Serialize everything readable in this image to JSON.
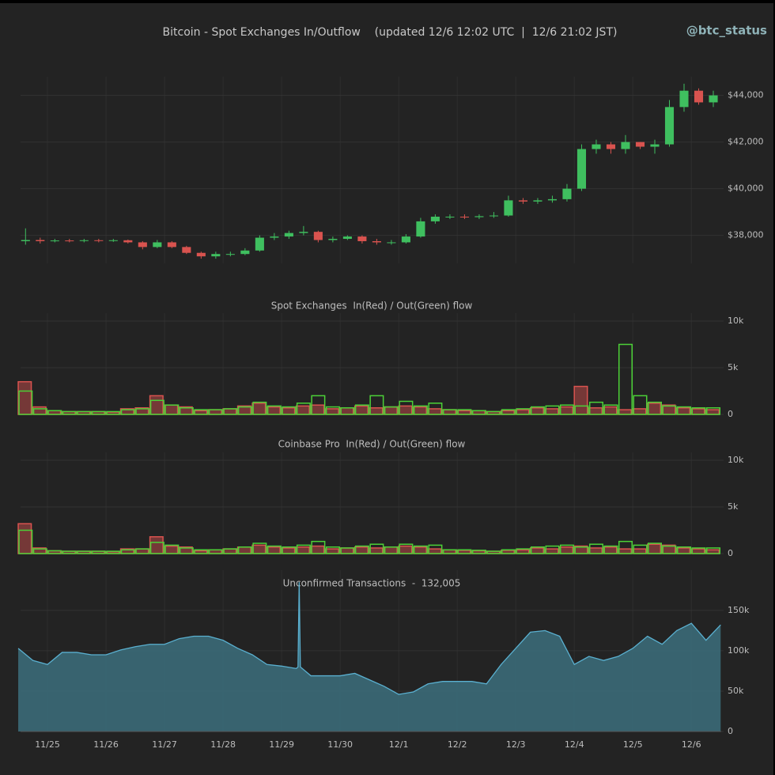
{
  "header": {
    "title": "Bitcoin - Spot Exchanges In/Outflow    (updated 12/6 12:02 UTC  |  12/6 21:02 JST)",
    "watermark": "@btc_status"
  },
  "chart_data": [
    {
      "type": "candlestick",
      "up_color": "#3fbf5f",
      "down_color": "#d9534f",
      "x": [
        -0.5,
        -0.25,
        0,
        0.25,
        0.5,
        0.75,
        1,
        1.25,
        1.5,
        1.75,
        2,
        2.25,
        2.5,
        2.75,
        3,
        3.25,
        3.5,
        3.75,
        4,
        4.25,
        4.5,
        4.75,
        5,
        5.25,
        5.5,
        5.75,
        6,
        6.25,
        6.5,
        6.75,
        7,
        7.25,
        7.5,
        7.75,
        8,
        8.25,
        8.5,
        8.75,
        9,
        9.25,
        9.5,
        9.75,
        10,
        10.25,
        10.5,
        10.75,
        11,
        11.25
      ],
      "open": [
        37750,
        37800,
        37750,
        37780,
        37760,
        37790,
        37770,
        37790,
        37700,
        37500,
        37700,
        37500,
        37250,
        37100,
        37200,
        37200,
        37350,
        37900,
        37950,
        38100,
        38150,
        37800,
        37850,
        37950,
        37750,
        37700,
        37700,
        37950,
        38600,
        38800,
        38800,
        38780,
        38820,
        38850,
        39500,
        39450,
        39500,
        39550,
        40000,
        41700,
        41900,
        41700,
        42000,
        41800,
        41900,
        43500,
        44200,
        43700
      ],
      "high": [
        38300,
        37900,
        37850,
        37850,
        37850,
        37850,
        37850,
        37820,
        37750,
        37800,
        37750,
        37550,
        37300,
        37300,
        37300,
        37450,
        38000,
        38100,
        38200,
        38400,
        38200,
        37950,
        38000,
        38000,
        37850,
        37800,
        38050,
        38750,
        38900,
        38900,
        38900,
        38900,
        39000,
        39700,
        39600,
        39600,
        39700,
        40200,
        41900,
        42100,
        42000,
        42300,
        42000,
        42100,
        43800,
        44500,
        44300,
        44200
      ],
      "low": [
        37600,
        37650,
        37700,
        37700,
        37700,
        37700,
        37720,
        37650,
        37400,
        37450,
        37450,
        37200,
        37000,
        37000,
        37100,
        37150,
        37300,
        37800,
        37850,
        38000,
        37700,
        37700,
        37800,
        37650,
        37600,
        37600,
        37650,
        37900,
        38500,
        38700,
        38700,
        38700,
        38750,
        38800,
        39350,
        39350,
        39400,
        39450,
        39900,
        41500,
        41500,
        41500,
        41700,
        41500,
        41800,
        43300,
        43600,
        43500
      ],
      "close": [
        37800,
        37750,
        37780,
        37760,
        37790,
        37770,
        37790,
        37700,
        37500,
        37700,
        37500,
        37250,
        37100,
        37200,
        37200,
        37350,
        37900,
        37950,
        38100,
        38150,
        37800,
        37850,
        37950,
        37750,
        37700,
        37700,
        37950,
        38600,
        38800,
        38800,
        38780,
        38820,
        38850,
        39500,
        39450,
        39500,
        39550,
        40000,
        41700,
        41900,
        41700,
        42000,
        41800,
        41900,
        43500,
        44200,
        43700,
        44000
      ],
      "xlim": [
        -0.46,
        11.51
      ],
      "ylim": [
        36800,
        44800
      ],
      "yticks": [
        {
          "value": 38000,
          "label": "$38,000"
        },
        {
          "value": 40000,
          "label": "$40,000"
        },
        {
          "value": 42000,
          "label": "$42,000"
        },
        {
          "value": 44000,
          "label": "$44,000"
        }
      ],
      "grid": true
    },
    {
      "type": "flow",
      "title": "Spot Exchanges  In(Red) / Out(Green) flow",
      "x": [
        -0.5,
        -0.25,
        0,
        0.25,
        0.5,
        0.75,
        1,
        1.25,
        1.5,
        1.75,
        2,
        2.25,
        2.5,
        2.75,
        3,
        3.25,
        3.5,
        3.75,
        4,
        4.25,
        4.5,
        4.75,
        5,
        5.25,
        5.5,
        5.75,
        6,
        6.25,
        6.5,
        6.75,
        7,
        7.25,
        7.5,
        7.75,
        8,
        8.25,
        8.5,
        8.75,
        9,
        9.25,
        9.5,
        9.75,
        10,
        10.25,
        10.5,
        10.75,
        11,
        11.25
      ],
      "series": [
        {
          "color": "#d9534f",
          "values": [
            3500,
            800,
            400,
            300,
            300,
            300,
            250,
            600,
            700,
            2000,
            1000,
            800,
            400,
            500,
            600,
            900,
            1200,
            800,
            700,
            900,
            1000,
            600,
            700,
            900,
            700,
            800,
            900,
            800,
            600,
            500,
            400,
            400,
            300,
            400,
            500,
            700,
            600,
            800,
            3000,
            700,
            800,
            500,
            600,
            1200,
            1000,
            700,
            600,
            500
          ]
        },
        {
          "color": "#4cd137",
          "values": [
            2500,
            600,
            400,
            300,
            300,
            300,
            300,
            500,
            600,
            1500,
            1000,
            700,
            500,
            500,
            600,
            800,
            1300,
            900,
            800,
            1200,
            2000,
            800,
            700,
            1000,
            2000,
            800,
            1400,
            900,
            1200,
            500,
            500,
            400,
            300,
            500,
            600,
            800,
            900,
            1000,
            900,
            1300,
            1000,
            7500,
            2000,
            1300,
            900,
            800,
            700,
            700
          ]
        }
      ],
      "xlim": [
        -0.46,
        11.51
      ],
      "ylim": [
        0,
        10000
      ],
      "yticks": [
        0,
        {
          "value": 5000,
          "label": "5k"
        },
        {
          "value": 10000,
          "label": "10k"
        }
      ],
      "grid": true
    },
    {
      "type": "flow",
      "title": "Coinbase Pro  In(Red) / Out(Green) flow",
      "x": [
        -0.5,
        -0.25,
        0,
        0.25,
        0.5,
        0.75,
        1,
        1.25,
        1.5,
        1.75,
        2,
        2.25,
        2.5,
        2.75,
        3,
        3.25,
        3.5,
        3.75,
        4,
        4.25,
        4.5,
        4.75,
        5,
        5.25,
        5.5,
        5.75,
        6,
        6.25,
        6.5,
        6.75,
        7,
        7.25,
        7.5,
        7.75,
        8,
        8.25,
        8.5,
        8.75,
        9,
        9.25,
        9.5,
        9.75,
        10,
        10.25,
        10.5,
        10.75,
        11,
        11.25
      ],
      "series": [
        {
          "color": "#d9534f",
          "values": [
            3200,
            600,
            300,
            250,
            250,
            250,
            200,
            500,
            500,
            1800,
            800,
            700,
            300,
            400,
            500,
            700,
            900,
            700,
            600,
            700,
            800,
            500,
            600,
            700,
            600,
            700,
            800,
            700,
            500,
            400,
            350,
            300,
            250,
            350,
            400,
            600,
            500,
            700,
            800,
            600,
            700,
            500,
            500,
            1000,
            900,
            600,
            500,
            400
          ]
        },
        {
          "color": "#4cd137",
          "values": [
            2500,
            500,
            300,
            250,
            250,
            250,
            250,
            400,
            500,
            1200,
            900,
            600,
            400,
            400,
            500,
            700,
            1100,
            800,
            700,
            900,
            1300,
            700,
            600,
            800,
            1000,
            700,
            1000,
            800,
            900,
            400,
            400,
            350,
            250,
            400,
            500,
            700,
            800,
            900,
            700,
            1000,
            800,
            1300,
            900,
            1100,
            800,
            700,
            600,
            600
          ]
        }
      ],
      "xlim": [
        -0.46,
        11.51
      ],
      "ylim": [
        0,
        10000
      ],
      "yticks": [
        0,
        {
          "value": 5000,
          "label": "5k"
        },
        {
          "value": 10000,
          "label": "10k"
        }
      ],
      "grid": true
    },
    {
      "type": "area",
      "title": "Unconfirmed Transactions  -  132,005",
      "color": "#3b6a78",
      "line_color": "#5ab0d0",
      "x": [
        -0.5,
        -0.25,
        0,
        0.25,
        0.5,
        0.75,
        1,
        1.25,
        1.5,
        1.75,
        2,
        2.25,
        2.5,
        2.75,
        3,
        3.25,
        3.5,
        3.75,
        4,
        4.25,
        4.28,
        4.3,
        4.32,
        4.5,
        4.75,
        5,
        5.25,
        5.5,
        5.75,
        6,
        6.25,
        6.5,
        6.75,
        7,
        7.25,
        7.5,
        7.75,
        8,
        8.25,
        8.5,
        8.75,
        9,
        9.25,
        9.5,
        9.75,
        10,
        10.25,
        10.5,
        10.75,
        11,
        11.25,
        11.5
      ],
      "values": [
        103000,
        88000,
        83000,
        98000,
        98000,
        95000,
        95000,
        101000,
        105000,
        108000,
        108000,
        115000,
        118000,
        118000,
        113000,
        103000,
        95000,
        83000,
        81000,
        78000,
        80000,
        185000,
        80000,
        69000,
        69000,
        69000,
        72000,
        64000,
        56000,
        46000,
        49000,
        59000,
        62000,
        62000,
        62000,
        59000,
        83000,
        103000,
        123000,
        125000,
        118000,
        83000,
        93000,
        88000,
        93000,
        103000,
        118000,
        108000,
        125000,
        134000,
        113000,
        132000
      ],
      "xlim": [
        -0.46,
        11.51
      ],
      "ylim": [
        0,
        190000
      ],
      "yticks": [
        0,
        {
          "value": 50000,
          "label": "50k"
        },
        {
          "value": 100000,
          "label": "100k"
        },
        {
          "value": 150000,
          "label": "150k"
        }
      ],
      "xticks": [
        {
          "value": 0,
          "label": "11/25"
        },
        {
          "value": 1,
          "label": "11/26"
        },
        {
          "value": 2,
          "label": "11/27"
        },
        {
          "value": 3,
          "label": "11/28"
        },
        {
          "value": 4,
          "label": "11/29"
        },
        {
          "value": 5,
          "label": "11/30"
        },
        {
          "value": 6,
          "label": "12/1"
        },
        {
          "value": 7,
          "label": "12/2"
        },
        {
          "value": 8,
          "label": "12/3"
        },
        {
          "value": 9,
          "label": "12/4"
        },
        {
          "value": 10,
          "label": "12/5"
        },
        {
          "value": 11,
          "label": "12/6"
        }
      ],
      "grid": true
    }
  ]
}
